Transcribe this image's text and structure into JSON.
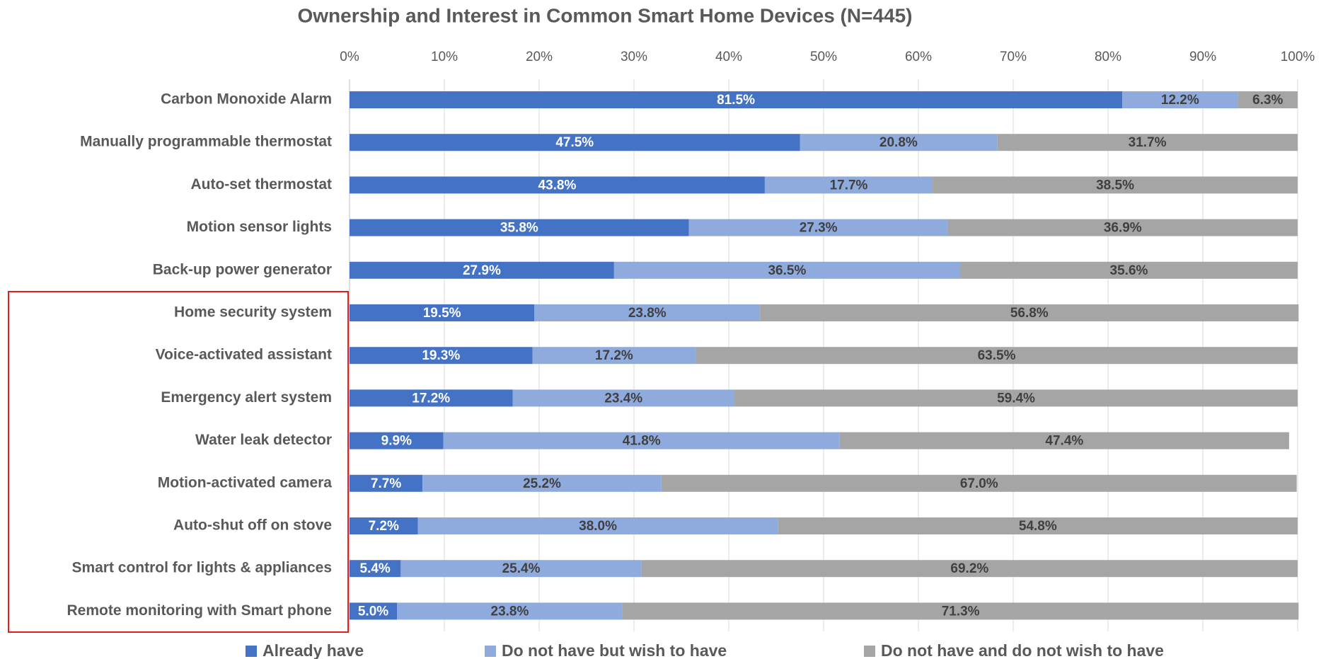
{
  "chart_data": {
    "type": "stacked_barh",
    "title": "Ownership and Interest in Common Smart Home Devices (N=445)",
    "categories": [
      "Carbon Monoxide Alarm",
      "Manually programmable thermostat",
      "Auto-set thermostat",
      "Motion sensor lights",
      "Back-up power generator",
      "Home security system",
      "Voice-activated assistant",
      "Emergency alert system",
      "Water leak detector",
      "Motion-activated camera",
      "Auto-shut off on stove",
      "Smart control for lights & appliances",
      "Remote monitoring with Smart phone"
    ],
    "series": [
      {
        "name": "Already have",
        "color": "#4472c4",
        "values": [
          81.5,
          47.5,
          43.8,
          35.8,
          27.9,
          19.5,
          19.3,
          17.2,
          9.9,
          7.7,
          7.2,
          5.4,
          5.0
        ],
        "value_labels": [
          "81.5%",
          "47.5%",
          "43.8%",
          "35.8%",
          "27.9%",
          "19.5%",
          "19.3%",
          "17.2%",
          "9.9%",
          "7.7%",
          "7.2%",
          "5.4%",
          "5.0%"
        ]
      },
      {
        "name": "Do not have but wish to have",
        "color": "#8faadc",
        "values": [
          12.2,
          20.8,
          17.7,
          27.3,
          36.5,
          23.8,
          17.2,
          23.4,
          41.8,
          25.2,
          38.0,
          25.4,
          23.8
        ],
        "value_labels": [
          "12.2%",
          "20.8%",
          "17.7%",
          "27.3%",
          "36.5%",
          "23.8%",
          "17.2%",
          "23.4%",
          "41.8%",
          "25.2%",
          "38.0%",
          "25.4%",
          "23.8%"
        ]
      },
      {
        "name": "Do not have and do not wish to have",
        "color": "#a5a5a5",
        "values": [
          6.3,
          31.7,
          38.5,
          36.9,
          35.6,
          56.8,
          63.5,
          59.4,
          47.4,
          67.0,
          54.8,
          69.2,
          71.3
        ],
        "value_labels": [
          "6.3%",
          "31.7%",
          "38.5%",
          "36.9%",
          "35.6%",
          "56.8%",
          "63.5%",
          "59.4%",
          "47.4%",
          "67.0%",
          "54.8%",
          "69.2%",
          "71.3%"
        ]
      }
    ],
    "xlim": [
      0,
      100
    ],
    "xticks": [
      {
        "value": 0,
        "label": "0%"
      },
      {
        "value": 10,
        "label": "10%"
      },
      {
        "value": 20,
        "label": "20%"
      },
      {
        "value": 30,
        "label": "30%"
      },
      {
        "value": 40,
        "label": "40%"
      },
      {
        "value": 50,
        "label": "50%"
      },
      {
        "value": 60,
        "label": "60%"
      },
      {
        "value": 70,
        "label": "70%"
      },
      {
        "value": 80,
        "label": "80%"
      },
      {
        "value": 90,
        "label": "90%"
      },
      {
        "value": 100,
        "label": "100%"
      }
    ],
    "grid": true,
    "legend": "bottom"
  }
}
